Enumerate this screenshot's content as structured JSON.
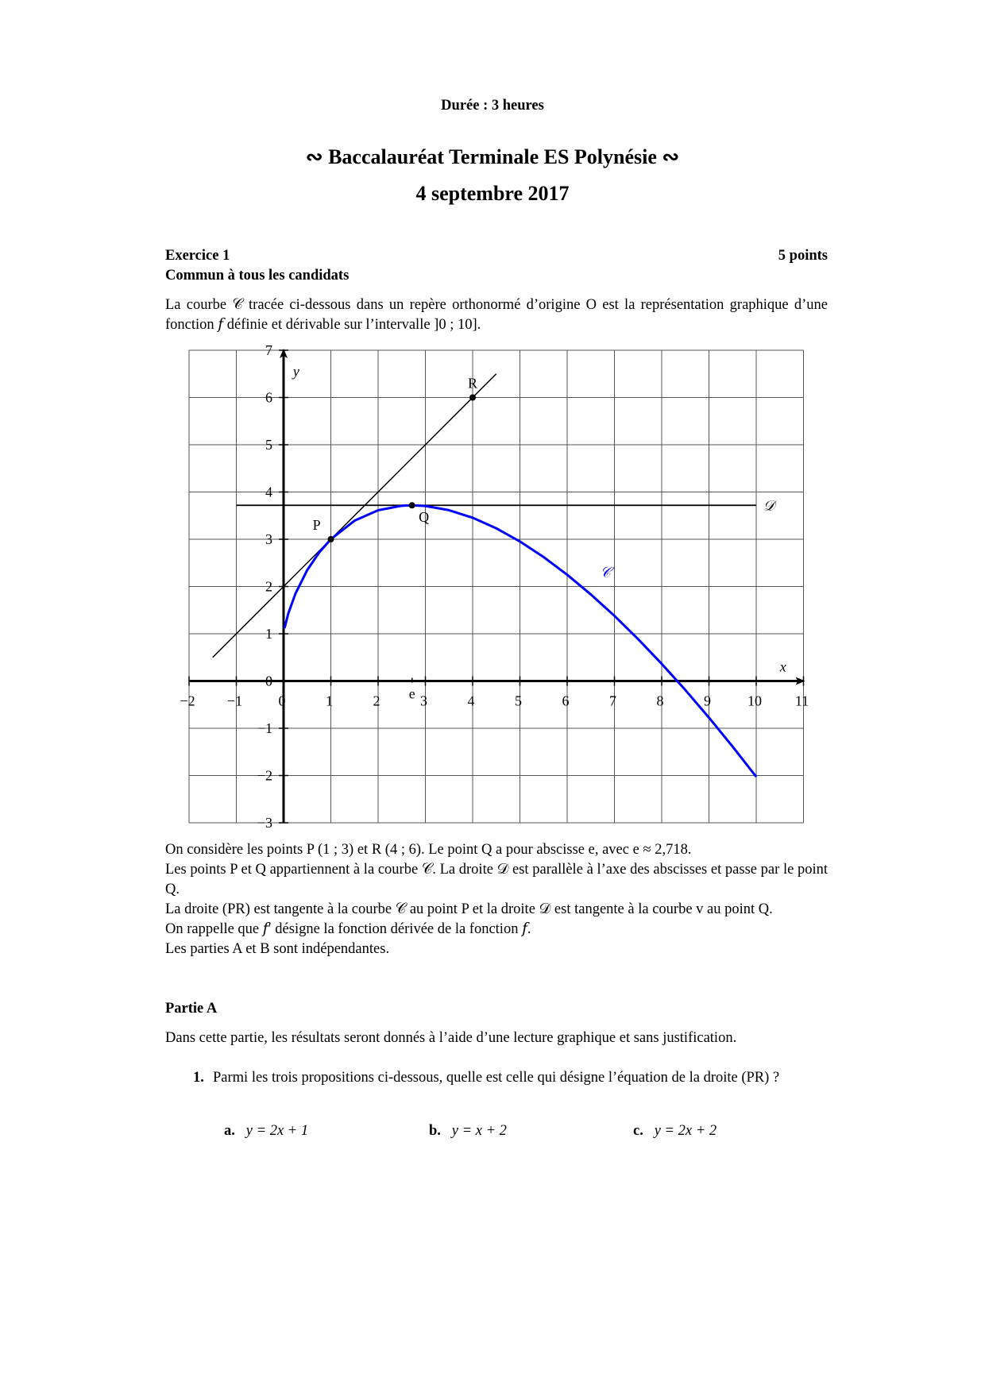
{
  "header": {
    "duration": "Durée : 3 heures",
    "title": "Baccalauréat Terminale ES Polynésie",
    "ornament_left": "∾",
    "ornament_right": "∾",
    "date": "4 septembre 2017"
  },
  "exercise": {
    "title": "Exercice 1",
    "points": "5 points",
    "audience": "Commun à tous les candidats",
    "intro": "La courbe 𝒞 tracée ci-dessous dans un repère orthonormé d’origine O est la représentation graphique d’une fonction 𝑓 définie et dérivable sur l’intervalle ]0 ; 10].",
    "after_graph": [
      "On considère les points P (1 ; 3) et R (4 ; 6). Le point Q a pour abscisse e, avec e ≈ 2,718.",
      "Les points P et Q appartiennent à la courbe 𝒞. La droite 𝒟 est parallèle à l’axe des abscisses et passe par le point Q.",
      "La droite (PR) est tangente à la courbe 𝒞 au point P et la droite 𝒟 est tangente à la courbe v au point Q.",
      "On rappelle que 𝑓′ désigne la fonction dérivée de la fonction 𝑓.",
      "Les parties A et B sont indépendantes."
    ],
    "part_a": {
      "title": "Partie A",
      "intro": "Dans cette partie, les résultats seront donnés à l’aide d’une lecture graphique et sans justification.",
      "question_number": "1.",
      "question": "Parmi les trois propositions ci-dessous, quelle est celle qui désigne l’équation de la droite (PR) ?",
      "options": [
        {
          "label": "a.",
          "text": "y = 2x + 1"
        },
        {
          "label": "b.",
          "text": "y = x + 2"
        },
        {
          "label": "c.",
          "text": "y = 2x + 2"
        }
      ]
    }
  },
  "chart_data": {
    "type": "line",
    "xlim": [
      -2,
      11
    ],
    "ylim": [
      -3,
      7
    ],
    "grid": true,
    "xlabel": "x",
    "ylabel": "y",
    "x_ticks": [
      "−2",
      "−1",
      "0",
      "1",
      "2",
      "3",
      "4",
      "5",
      "6",
      "7",
      "8",
      "9",
      "10",
      "11"
    ],
    "y_ticks": [
      "−3",
      "−2",
      "−1",
      "0",
      "1",
      "2",
      "3",
      "4",
      "5",
      "6",
      "7"
    ],
    "curve": {
      "label": "𝒞",
      "color": "#0000ff",
      "x": [
        0.02,
        0.1,
        0.25,
        0.5,
        0.75,
        1,
        1.5,
        2,
        2.5,
        2.718,
        3,
        3.5,
        4,
        4.5,
        5,
        5.5,
        6,
        6.5,
        7,
        7.5,
        8,
        8.5,
        9,
        9.5,
        10
      ],
      "y": [
        1.118,
        1.43,
        1.847,
        2.347,
        2.716,
        3,
        3.392,
        3.614,
        3.709,
        3.718,
        3.704,
        3.615,
        3.455,
        3.232,
        2.953,
        2.624,
        2.249,
        1.833,
        1.379,
        0.888,
        0.364,
        -0.19,
        -0.775,
        -1.387,
        -2.026
      ]
    },
    "tangent_PR": {
      "x": [
        -1.5,
        4.5
      ],
      "y": [
        0.5,
        6.5
      ]
    },
    "line_D": {
      "label": "𝒟",
      "x": [
        -1,
        10
      ],
      "y": [
        3.718,
        3.718
      ]
    },
    "points": [
      {
        "name": "P",
        "x": 1,
        "y": 3
      },
      {
        "name": "Q",
        "x": 2.718,
        "y": 3.718
      },
      {
        "name": "R",
        "x": 4,
        "y": 6
      }
    ],
    "e_mark": {
      "label": "e",
      "x": 2.718
    }
  }
}
